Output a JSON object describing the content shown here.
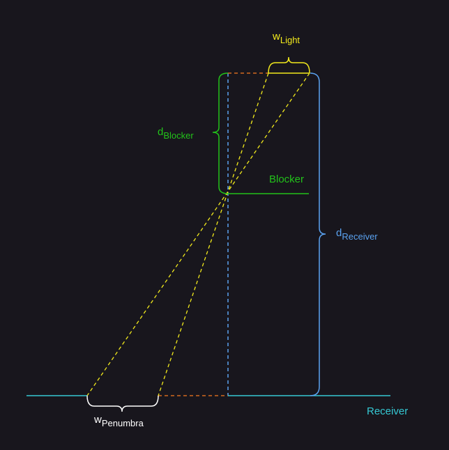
{
  "colors": {
    "background": "#18161d",
    "light": "#f2ea1c",
    "blocker": "#22c21a",
    "receiver_bracket": "#5aa2f0",
    "receiver_line": "#35c9d4",
    "penumbra": "#ffffff",
    "projection": "#d2691e"
  },
  "labels": {
    "w_light": {
      "main": "w",
      "sub": "Light"
    },
    "d_blocker": {
      "main": "d",
      "sub": "Blocker"
    },
    "blocker": "Blocker",
    "d_receiver": {
      "main": "d",
      "sub": "Receiver"
    },
    "receiver": "Receiver",
    "w_penumbra": {
      "main": "w",
      "sub": "Penumbra"
    }
  }
}
